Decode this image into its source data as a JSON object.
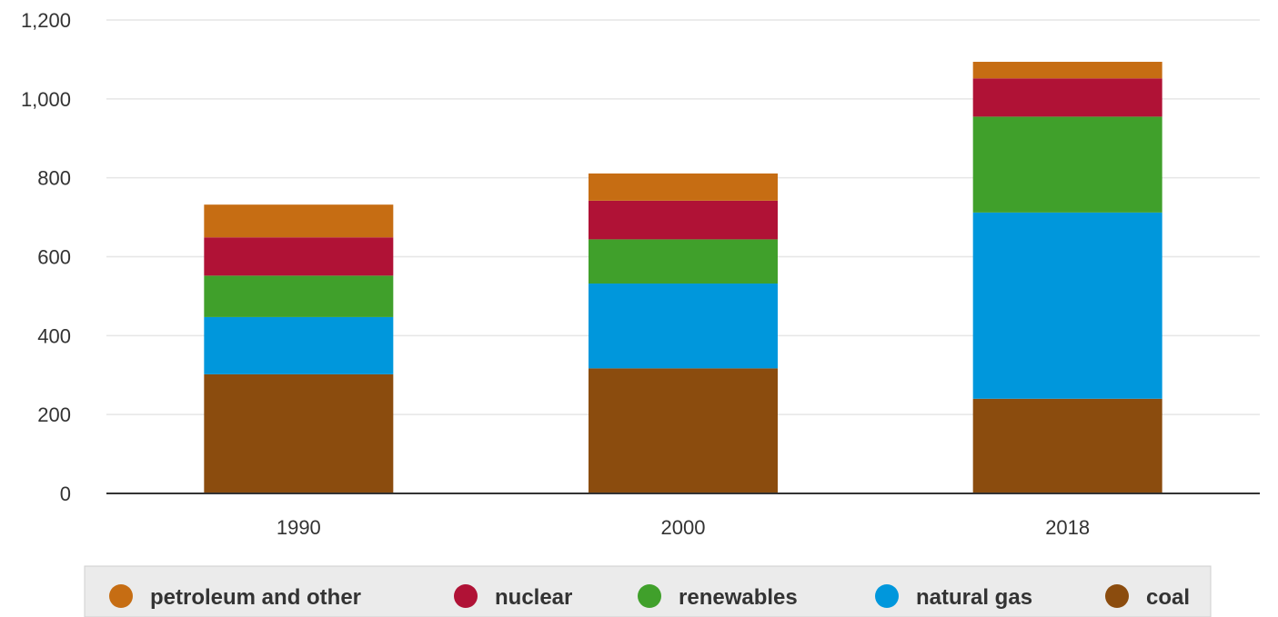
{
  "chart_data": {
    "type": "bar",
    "stacked": true,
    "title": "",
    "xlabel": "",
    "ylabel": "",
    "categories": [
      "1990",
      "2000",
      "2018"
    ],
    "ylim": [
      0,
      1200
    ],
    "yticks": [
      0,
      200,
      400,
      600,
      800,
      1000,
      1200
    ],
    "ytick_labels": [
      "0",
      "200",
      "400",
      "600",
      "800",
      "1,000",
      "1,200"
    ],
    "grid": true,
    "legend_position": "bottom",
    "series": [
      {
        "name": "coal",
        "color": "#8b4c0e",
        "values": [
          302,
          317,
          240
        ]
      },
      {
        "name": "natural gas",
        "color": "#0097dc",
        "values": [
          145,
          215,
          472
        ]
      },
      {
        "name": "renewables",
        "color": "#40a02b",
        "values": [
          105,
          112,
          243
        ]
      },
      {
        "name": "nuclear",
        "color": "#b01236",
        "values": [
          97,
          98,
          97
        ]
      },
      {
        "name": "petroleum and other",
        "color": "#c66d13",
        "values": [
          83,
          69,
          42
        ]
      }
    ],
    "legend_order": [
      "petroleum and other",
      "nuclear",
      "renewables",
      "natural gas",
      "coal"
    ]
  }
}
